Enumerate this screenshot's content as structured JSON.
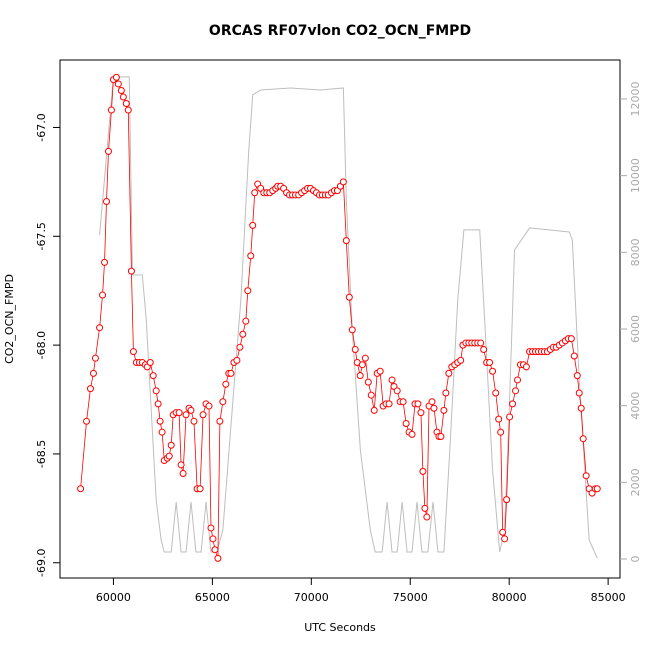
{
  "chart_data": {
    "type": "line",
    "title": "ORCAS RF07vlon CO2_OCN_FMPD",
    "xlabel": "UTC Seconds",
    "ylabel": "CO2_OCN_FMPD",
    "xlim": [
      57300,
      85600
    ],
    "xticks": [
      60000,
      65000,
      70000,
      75000,
      80000,
      85000
    ],
    "ylim": [
      -69.07,
      -66.69
    ],
    "yticks": [
      {
        "value": -67,
        "label": "-67.0"
      },
      -67.5,
      {
        "value": -68,
        "label": "-68.0"
      },
      -68.5,
      {
        "value": -69,
        "label": "-69.0"
      }
    ],
    "y2lim": [
      -496,
      13017
    ],
    "y2ticks": [
      0,
      2000,
      4000,
      6000,
      8000,
      10000,
      12000
    ],
    "series": [
      {
        "color": "#ff0000",
        "markers": true,
        "x": [
          58340,
          58640,
          58840,
          58990,
          59090,
          59300,
          59450,
          59550,
          59650,
          59750,
          59900,
          60000,
          60150,
          60250,
          60400,
          60500,
          60650,
          60750,
          60910,
          61010,
          61160,
          61310,
          61460,
          61610,
          61710,
          61860,
          62010,
          62160,
          62260,
          62360,
          62460,
          62570,
          62720,
          62820,
          62920,
          63020,
          63170,
          63320,
          63420,
          63520,
          63670,
          63820,
          63920,
          64070,
          64230,
          64380,
          64530,
          64680,
          64830,
          64930,
          65030,
          65130,
          65280,
          65380,
          65530,
          65680,
          65830,
          65940,
          66090,
          66240,
          66390,
          66540,
          66690,
          66790,
          66940,
          67040,
          67140,
          67290,
          67440,
          67600,
          67750,
          67900,
          68050,
          68200,
          68300,
          68450,
          68600,
          68750,
          68900,
          69050,
          69200,
          69360,
          69510,
          69660,
          69810,
          69960,
          70110,
          70260,
          70410,
          70560,
          70710,
          70860,
          71020,
          71170,
          71320,
          71470,
          71620,
          71770,
          71920,
          72070,
          72220,
          72320,
          72470,
          72580,
          72730,
          72880,
          73030,
          73180,
          73330,
          73480,
          73630,
          73780,
          73930,
          74080,
          74180,
          74340,
          74490,
          74640,
          74790,
          74940,
          75090,
          75240,
          75390,
          75540,
          75640,
          75740,
          75840,
          75950,
          76100,
          76200,
          76350,
          76450,
          76550,
          76700,
          76800,
          76950,
          77100,
          77250,
          77400,
          77550,
          77660,
          77810,
          77960,
          78110,
          78260,
          78410,
          78560,
          78710,
          78860,
          79010,
          79160,
          79320,
          79470,
          79570,
          79670,
          79770,
          79870,
          80020,
          80170,
          80320,
          80420,
          80570,
          80720,
          80870,
          81030,
          81180,
          81330,
          81480,
          81630,
          81780,
          81930,
          82080,
          82230,
          82380,
          82530,
          82690,
          82840,
          82990,
          83140,
          83290,
          83440,
          83540,
          83640,
          83740,
          83890,
          84040,
          84190,
          84350,
          84450
        ],
        "values": [
          -68.66,
          -68.35,
          -68.2,
          -68.13,
          -68.06,
          -67.92,
          -67.77,
          -67.62,
          -67.34,
          -67.11,
          -66.92,
          -66.78,
          -66.77,
          -66.8,
          -66.83,
          -66.86,
          -66.89,
          -66.92,
          -67.66,
          -68.03,
          -68.08,
          -68.08,
          -68.08,
          -68.09,
          -68.1,
          -68.08,
          -68.14,
          -68.21,
          -68.27,
          -68.35,
          -68.4,
          -68.53,
          -68.52,
          -68.51,
          -68.46,
          -68.32,
          -68.31,
          -68.31,
          -68.55,
          -68.59,
          -68.32,
          -68.29,
          -68.3,
          -68.35,
          -68.66,
          -68.66,
          -68.32,
          -68.27,
          -68.28,
          -68.84,
          -68.89,
          -68.94,
          -68.98,
          -68.35,
          -68.26,
          -68.18,
          -68.13,
          -68.13,
          -68.08,
          -68.07,
          -68.01,
          -67.95,
          -67.89,
          -67.75,
          -67.59,
          -67.45,
          -67.3,
          -67.26,
          -67.28,
          -67.3,
          -67.3,
          -67.3,
          -67.29,
          -67.28,
          -67.27,
          -67.27,
          -67.28,
          -67.3,
          -67.31,
          -67.31,
          -67.31,
          -67.31,
          -67.3,
          -67.29,
          -67.28,
          -67.28,
          -67.29,
          -67.3,
          -67.31,
          -67.31,
          -67.31,
          -67.31,
          -67.3,
          -67.29,
          -67.29,
          -67.27,
          -67.25,
          -67.52,
          -67.78,
          -67.93,
          -68.02,
          -68.08,
          -68.14,
          -68.09,
          -68.06,
          -68.17,
          -68.23,
          -68.3,
          -68.13,
          -68.12,
          -68.28,
          -68.27,
          -68.27,
          -68.16,
          -68.19,
          -68.21,
          -68.26,
          -68.26,
          -68.36,
          -68.4,
          -68.41,
          -68.27,
          -68.27,
          -68.31,
          -68.58,
          -68.75,
          -68.79,
          -68.28,
          -68.26,
          -68.29,
          -68.4,
          -68.42,
          -68.42,
          -68.3,
          -68.22,
          -68.13,
          -68.1,
          -68.09,
          -68.08,
          -68.07,
          -68.0,
          -67.99,
          -67.99,
          -67.99,
          -67.99,
          -67.99,
          -67.99,
          -68.02,
          -68.08,
          -68.08,
          -68.12,
          -68.22,
          -68.34,
          -68.4,
          -68.86,
          -68.89,
          -68.71,
          -68.33,
          -68.27,
          -68.21,
          -68.16,
          -68.09,
          -68.09,
          -68.1,
          -68.03,
          -68.03,
          -68.03,
          -68.03,
          -68.03,
          -68.03,
          -68.03,
          -68.02,
          -68.01,
          -68.01,
          -68.0,
          -67.99,
          -67.98,
          -67.97,
          -67.97,
          -68.05,
          -68.14,
          -68.22,
          -68.29,
          -68.43,
          -68.6,
          -68.66,
          -68.68,
          -68.66,
          -68.66
        ]
      },
      {
        "color": "#bebebe",
        "axis": "y2",
        "markers": false,
        "x": [
          59300,
          60000,
          60800,
          60960,
          61460,
          61660,
          62160,
          62410,
          62570,
          62920,
          63170,
          63420,
          63670,
          63920,
          64170,
          64430,
          64680,
          64930,
          65230,
          65530,
          66040,
          66440,
          66840,
          67040,
          67440,
          68950,
          70460,
          71620,
          71770,
          72070,
          72480,
          72980,
          73230,
          73580,
          73830,
          74080,
          74340,
          74590,
          74840,
          75090,
          75340,
          75590,
          75890,
          76150,
          76400,
          76700,
          77000,
          77400,
          77710,
          78510,
          78760,
          79160,
          79520,
          79770,
          80020,
          80270,
          81030,
          83040,
          83190,
          83540,
          84040,
          84450
        ],
        "values": [
          8453,
          12576,
          12576,
          7410,
          7410,
          6236,
          1539,
          496,
          183,
          183,
          1487,
          183,
          183,
          1487,
          183,
          183,
          1487,
          183,
          183,
          757,
          4148,
          6757,
          10671,
          12106,
          12236,
          12288,
          12236,
          12288,
          9366,
          5975,
          2844,
          757,
          183,
          183,
          1487,
          183,
          183,
          1487,
          183,
          183,
          1487,
          183,
          183,
          1487,
          183,
          183,
          2844,
          6757,
          8584,
          8584,
          6236,
          2322,
          183,
          757,
          4148,
          8062,
          8636,
          8531,
          8323,
          4670,
          496,
          26
        ]
      }
    ]
  }
}
